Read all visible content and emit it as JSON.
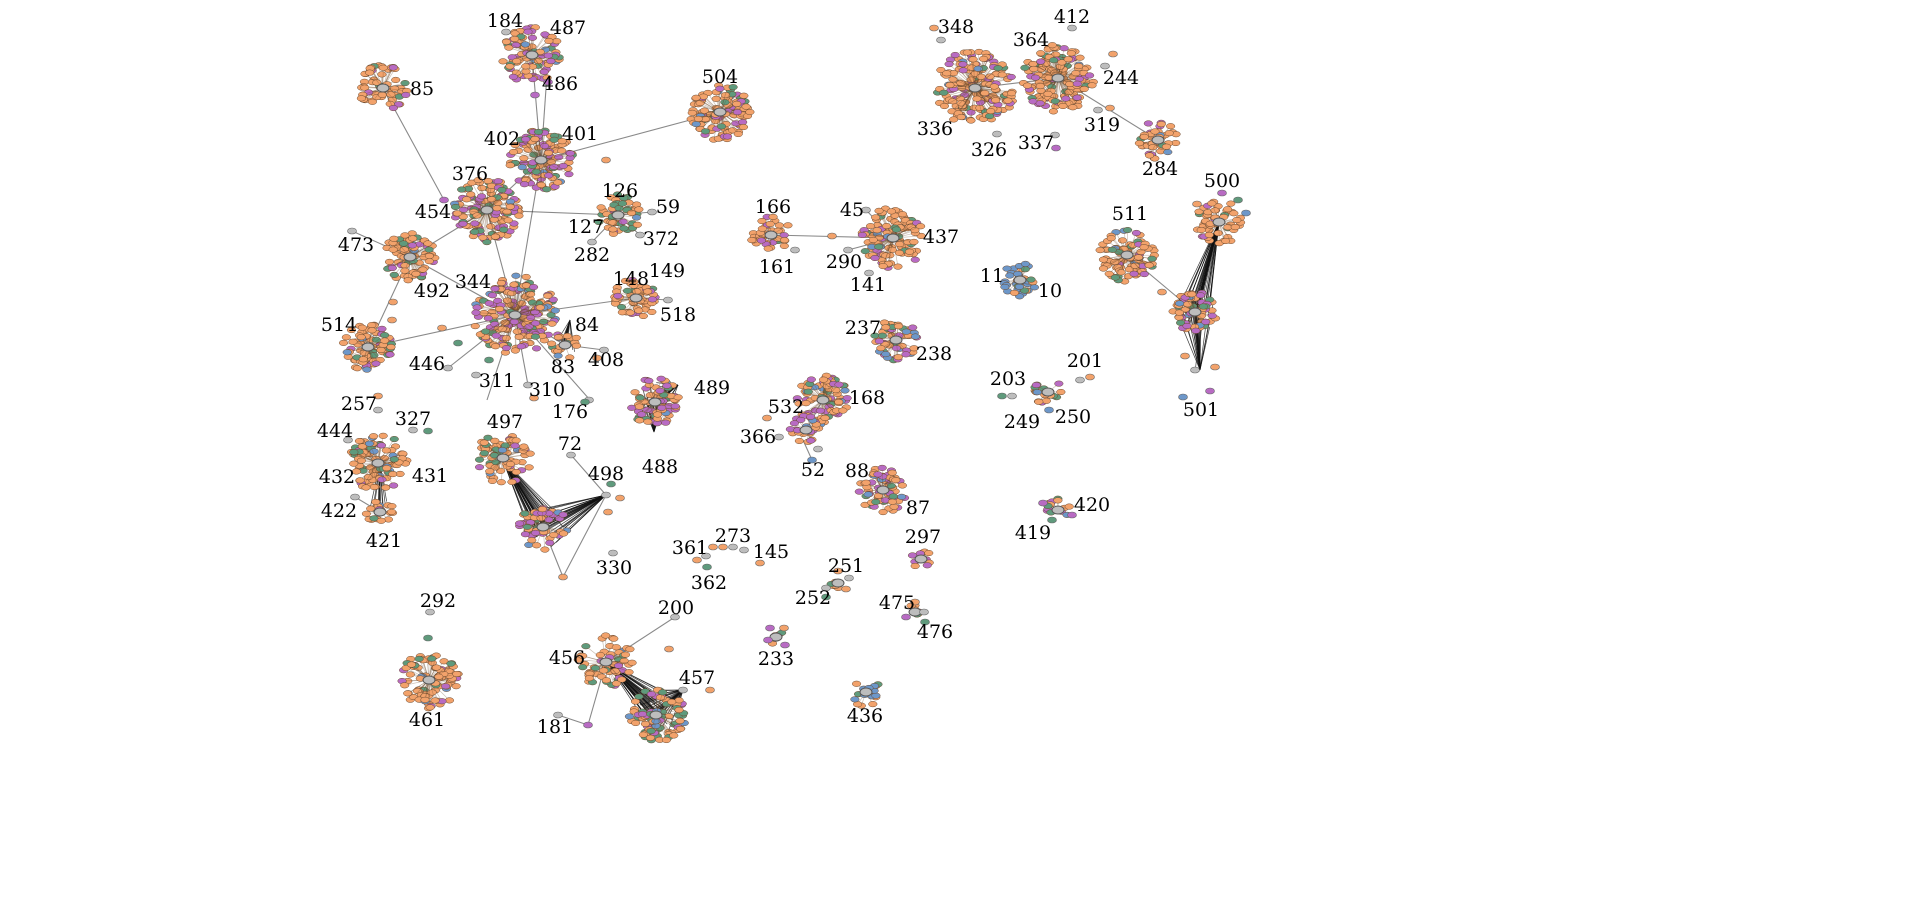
{
  "node_colors": {
    "orange": "#f2a26b",
    "purple": "#b86bc3",
    "green": "#5f9a7c",
    "blue": "#6d97c9",
    "gray": "#bdbdbd"
  },
  "labels": [
    "184",
    "487",
    "486",
    "85",
    "504",
    "402",
    "401",
    "376",
    "454",
    "126",
    "59",
    "127",
    "372",
    "282",
    "473",
    "492",
    "148",
    "149",
    "518",
    "344",
    "84",
    "514",
    "446",
    "311",
    "310",
    "83",
    "408",
    "176",
    "257",
    "327",
    "444",
    "432",
    "431",
    "422",
    "421",
    "497",
    "72",
    "498",
    "330",
    "489",
    "488",
    "166",
    "161",
    "45",
    "437",
    "290",
    "141",
    "237",
    "238",
    "532",
    "168",
    "366",
    "52",
    "88",
    "87",
    "348",
    "412",
    "364",
    "244",
    "336",
    "326",
    "337",
    "319",
    "284",
    "500",
    "511",
    "11",
    "10",
    "203",
    "201",
    "249",
    "250",
    "501",
    "420",
    "419",
    "297",
    "361",
    "273",
    "145",
    "362",
    "251",
    "252",
    "475",
    "476",
    "233",
    "292",
    "461",
    "200",
    "456",
    "457",
    "181",
    "436"
  ]
}
